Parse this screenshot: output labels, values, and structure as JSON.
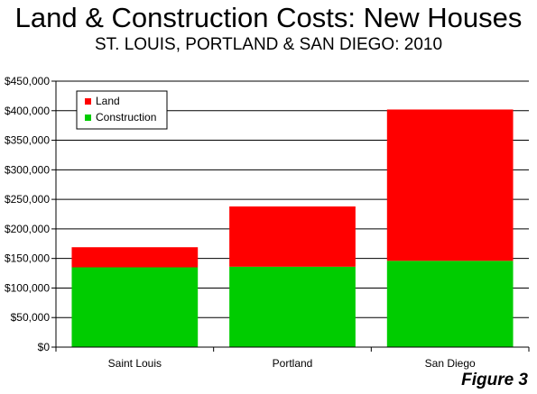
{
  "title": "Land & Construction Costs: New Houses",
  "subtitle": "ST. LOUIS, PORTLAND & SAN DIEGO: 2010",
  "figure_label": "Figure 3",
  "colors": {
    "land": "#ff0000",
    "construction": "#00cc00",
    "axis": "#000000",
    "gridline": "#000000",
    "legend_border": "#000000",
    "plot_background": "#ffffff"
  },
  "chart_data": {
    "type": "bar",
    "stacked": true,
    "title": "Land & Construction Costs: New Houses",
    "subtitle": "ST. LOUIS, PORTLAND & SAN DIEGO: 2010",
    "xlabel": "",
    "ylabel": "",
    "categories": [
      "Saint Louis",
      "Portland",
      "San Diego"
    ],
    "series": [
      {
        "name": "Construction",
        "color": "#00cc00",
        "values": [
          135000,
          136000,
          146000
        ]
      },
      {
        "name": "Land",
        "color": "#ff0000",
        "values": [
          34000,
          102000,
          256000
        ]
      }
    ],
    "ylim": [
      0,
      450000
    ],
    "y_ticks": [
      0,
      50000,
      100000,
      150000,
      200000,
      250000,
      300000,
      350000,
      400000,
      450000
    ],
    "y_tick_labels": [
      "$0",
      "$50,000",
      "$100,000",
      "$150,000",
      "$200,000",
      "$250,000",
      "$300,000",
      "$350,000",
      "$400,000",
      "$450,000"
    ],
    "grid": true,
    "legend": {
      "placement": "top-left",
      "entries": [
        "Land",
        "Construction"
      ]
    }
  }
}
